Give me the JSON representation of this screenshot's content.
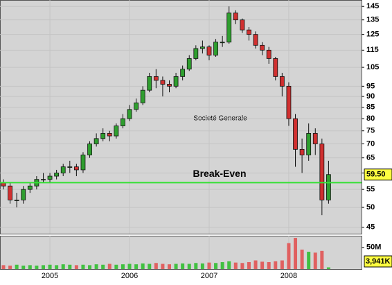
{
  "chart_data": [
    {
      "type": "candlestick",
      "title": "Societé Generale",
      "categories": [
        null,
        null,
        null,
        null,
        null,
        null,
        null,
        "2005",
        null,
        null,
        null,
        null,
        null,
        null,
        null,
        null,
        null,
        null,
        null,
        "2006",
        null,
        null,
        null,
        null,
        null,
        null,
        null,
        null,
        null,
        null,
        null,
        "2007",
        null,
        null,
        null,
        null,
        null,
        null,
        null,
        null,
        null,
        null,
        null,
        "2008",
        null,
        null,
        null,
        null,
        null,
        null
      ],
      "open": [
        57,
        56,
        52,
        52,
        55,
        56,
        58,
        58,
        59,
        60,
        62,
        62,
        61,
        66,
        70,
        72,
        74,
        73,
        77,
        80,
        84,
        87,
        93,
        100,
        98,
        96,
        95,
        100,
        104,
        110,
        116,
        117,
        112,
        120,
        120,
        140,
        135,
        128,
        125,
        118,
        115,
        110,
        100,
        95,
        80,
        68,
        66,
        74,
        70,
        52
      ],
      "high": [
        58,
        57,
        54,
        56,
        57,
        59,
        60,
        60,
        61,
        63,
        64,
        63,
        67,
        71,
        74,
        76,
        75,
        78,
        82,
        86,
        89,
        95,
        102,
        104,
        100,
        98,
        102,
        106,
        112,
        118,
        121,
        118,
        122,
        124,
        145,
        142,
        136,
        130,
        127,
        120,
        117,
        111,
        102,
        97,
        82,
        72,
        78,
        76,
        72,
        64
      ],
      "low": [
        55,
        51,
        50,
        51,
        54,
        55,
        57,
        57,
        58,
        59,
        60,
        59,
        60,
        65,
        69,
        71,
        71,
        72,
        76,
        79,
        83,
        86,
        92,
        94,
        90,
        92,
        94,
        98,
        103,
        109,
        113,
        109,
        111,
        117,
        119,
        132,
        126,
        121,
        116,
        112,
        107,
        98,
        90,
        77,
        62,
        60,
        64,
        66,
        48,
        51
      ],
      "close": [
        56,
        52,
        52,
        55,
        56,
        58,
        58,
        59,
        60,
        62,
        62,
        61,
        66,
        70,
        72,
        74,
        73,
        77,
        80,
        84,
        87,
        93,
        100,
        98,
        96,
        95,
        100,
        104,
        110,
        116,
        117,
        112,
        120,
        120,
        140,
        135,
        128,
        125,
        118,
        115,
        110,
        100,
        95,
        80,
        68,
        66,
        74,
        70,
        52,
        59.5
      ],
      "up_color": "#2f9e2f",
      "down_color": "#d03030",
      "log_scale": true,
      "ylim": [
        43.5,
        150
      ],
      "yticks": [
        45,
        50,
        55,
        60,
        65,
        70,
        75,
        80,
        85,
        90,
        95,
        105,
        115,
        125,
        135,
        145
      ],
      "grid": true,
      "reference_line": {
        "label": "Break-Even",
        "value": 57,
        "color": "#33e033"
      },
      "last_value": {
        "value": 59.5,
        "label": "59.50"
      }
    },
    {
      "type": "volume",
      "values": [
        9000000,
        8000000,
        10000000,
        8000000,
        9000000,
        8000000,
        9000000,
        10000000,
        9000000,
        11000000,
        10000000,
        9000000,
        10000000,
        9000000,
        11000000,
        10000000,
        12000000,
        10000000,
        11000000,
        12000000,
        11000000,
        13000000,
        12000000,
        14000000,
        12000000,
        11000000,
        12000000,
        13000000,
        12000000,
        14000000,
        13000000,
        15000000,
        14000000,
        16000000,
        18000000,
        15000000,
        14000000,
        16000000,
        20000000,
        17000000,
        16000000,
        18000000,
        20000000,
        60000000,
        72000000,
        45000000,
        40000000,
        38000000,
        42000000,
        3941000
      ],
      "colors": [
        "#e06060",
        "#40c040"
      ],
      "ylim": [
        0,
        77000000
      ],
      "yticks": [
        {
          "value": 50000000,
          "label": "50M"
        }
      ],
      "last_value": {
        "value": 3941000,
        "label": "3,941K"
      }
    }
  ]
}
